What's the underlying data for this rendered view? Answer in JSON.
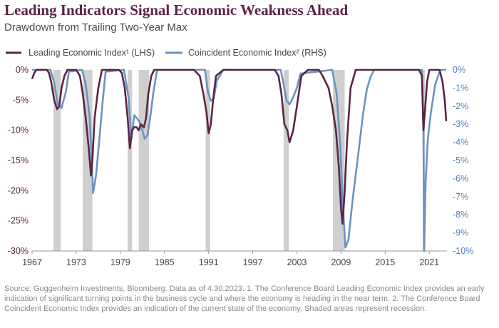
{
  "title": "Leading Indicators Signal Economic Weakness Ahead",
  "subtitle": "Drawdown from Trailing Two-Year Max",
  "source": "Source: Guggenheim Investments, Bloomberg. Data as of 4.30.2023. 1. The Conference Board Leading Economic Index provides an early indication of significant turning points in the business cycle and where the economy is heading in the near term. 2. The Conference Board Coincident Economic Index provides an indication of the current state of the economy. Shaded areas represent recession.",
  "colors": {
    "lei": "#5a2545",
    "cei": "#6b93c0",
    "recession": "#cfcfcf",
    "left_axis": "#5a2545",
    "right_axis": "#4f7fb5"
  },
  "chart_data": {
    "type": "line",
    "x_ticks": [
      "1967",
      "1973",
      "1979",
      "1985",
      "1991",
      "1997",
      "2003",
      "2009",
      "2015",
      "2021"
    ],
    "xlim": [
      1967,
      2023.4
    ],
    "left_axis": {
      "ticks": [
        "0%",
        "-5%",
        "-10%",
        "-15%",
        "-20%",
        "-25%",
        "-30%"
      ],
      "ylim": [
        -30,
        0
      ]
    },
    "right_axis": {
      "ticks": [
        "0%",
        "-1%",
        "-2%",
        "-3%",
        "-4%",
        "-5%",
        "-6%",
        "-7%",
        "-8%",
        "-9%",
        "-10%"
      ],
      "ylim": [
        -10,
        0
      ]
    },
    "recessions": [
      [
        1969.9,
        1970.9
      ],
      [
        1973.9,
        1975.2
      ],
      [
        1980.0,
        1980.6
      ],
      [
        1981.5,
        1982.9
      ],
      [
        1990.6,
        1991.2
      ],
      [
        2001.2,
        2001.9
      ],
      [
        2007.9,
        2009.5
      ],
      [
        2020.1,
        2020.4
      ]
    ],
    "series": [
      {
        "name": "Leading Economic Index¹ (LHS)",
        "axis": "left",
        "x": [
          1967.0,
          1967.3,
          1967.6,
          1968.0,
          1968.5,
          1969.0,
          1969.3,
          1969.6,
          1970.0,
          1970.4,
          1970.7,
          1971.0,
          1971.4,
          1971.8,
          1972.2,
          1973.0,
          1973.5,
          1973.9,
          1974.3,
          1974.7,
          1975.0,
          1975.2,
          1975.5,
          1976.0,
          1976.5,
          1977.0,
          1978.0,
          1978.8,
          1979.2,
          1979.6,
          1980.0,
          1980.3,
          1980.6,
          1980.9,
          1981.2,
          1981.5,
          1981.8,
          1982.2,
          1982.5,
          1982.8,
          1983.2,
          1983.6,
          1984.0,
          1984.5,
          1985.0,
          1987.0,
          1989.0,
          1989.8,
          1990.3,
          1990.7,
          1991.0,
          1991.3,
          1991.6,
          1992.0,
          1993.0,
          1995.0,
          1998.0,
          2000.0,
          2000.5,
          2000.9,
          2001.3,
          2001.7,
          2002.0,
          2002.5,
          2003.0,
          2003.6,
          2004.5,
          2006.0,
          2006.5,
          2007.3,
          2007.8,
          2008.3,
          2008.7,
          2009.0,
          2009.2,
          2009.5,
          2009.8,
          2010.3,
          2011.0,
          2013.0,
          2016.0,
          2019.0,
          2019.6,
          2020.0,
          2020.2,
          2020.4,
          2020.7,
          2021.0,
          2021.5,
          2022.0,
          2022.4,
          2022.8,
          2023.1,
          2023.3
        ],
        "values": [
          -1.5,
          -0.5,
          0,
          0,
          0,
          0,
          -0.5,
          -2,
          -5,
          -6.5,
          -6,
          -3,
          -1,
          0,
          0,
          0,
          -1,
          -4,
          -8,
          -13,
          -17.5,
          -15,
          -8,
          -3,
          0,
          0,
          0,
          0,
          -0.5,
          -3,
          -8,
          -13,
          -10,
          -9.5,
          -9.5,
          -10,
          -9,
          -9.5,
          -8,
          -4,
          -1,
          0,
          0,
          0,
          0,
          0,
          0,
          -1,
          -4,
          -7,
          -10.5,
          -9,
          -5,
          -1,
          0,
          0,
          0,
          0,
          -1,
          -4,
          -9,
          -10,
          -12,
          -10,
          -6,
          -1,
          0,
          0,
          -1,
          -3,
          -6,
          -10,
          -16,
          -23,
          -25.5,
          -20,
          -12,
          -3,
          0,
          0,
          0,
          0,
          0,
          -1,
          -10,
          -7,
          -2,
          0,
          0,
          0,
          0,
          -2,
          -5,
          -8.5
        ]
      },
      {
        "name": "Coincident Economic Index² (RHS)",
        "axis": "right",
        "x": [
          1967.0,
          1969.5,
          1970.0,
          1970.5,
          1971.0,
          1971.6,
          1972.0,
          1973.8,
          1974.3,
          1974.8,
          1975.1,
          1975.3,
          1975.7,
          1976.2,
          1976.6,
          1977.0,
          1979.5,
          1980.1,
          1980.5,
          1980.9,
          1981.5,
          1981.9,
          1982.3,
          1982.7,
          1983.1,
          1983.5,
          1984.0,
          1990.5,
          1990.9,
          1991.3,
          1991.7,
          1992.1,
          1993.0,
          2000.8,
          2001.2,
          2001.6,
          2002.0,
          2002.5,
          2003.0,
          2003.5,
          2007.8,
          2008.4,
          2008.9,
          2009.2,
          2009.6,
          2010.0,
          2010.6,
          2011.3,
          2012.0,
          2012.5,
          2013.0,
          2013.5,
          2020.0,
          2020.2,
          2020.3,
          2020.5,
          2020.8,
          2021.2,
          2021.8,
          2022.5,
          2023.3
        ],
        "values": [
          0,
          0,
          -0.7,
          -1.9,
          -2.1,
          -1.2,
          -0.1,
          0,
          -0.8,
          -2.5,
          -4.8,
          -6.8,
          -5.8,
          -3.6,
          -1.7,
          -0.1,
          0,
          -1.5,
          -3.8,
          -2.5,
          -2.8,
          -3.2,
          -3.8,
          -3.6,
          -2.5,
          -1.2,
          0,
          0,
          -1.2,
          -1.7,
          -1.6,
          -0.6,
          0,
          0,
          -0.8,
          -1.7,
          -1.9,
          -1.5,
          -1,
          -0.2,
          0,
          -1.3,
          -4.2,
          -7.2,
          -9.8,
          -9.4,
          -7.1,
          -4.8,
          -2.4,
          -1.1,
          -0.4,
          0,
          0,
          -3.5,
          -10,
          -6.2,
          -3.8,
          -2.4,
          -0.8,
          0,
          0
        ]
      }
    ]
  }
}
